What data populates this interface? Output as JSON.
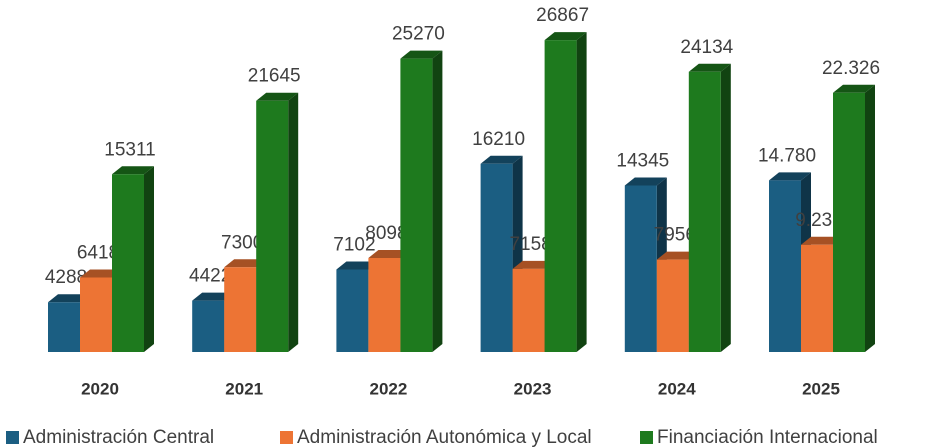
{
  "chart_data": {
    "type": "bar3d",
    "categories": [
      "2020",
      "2021",
      "2022",
      "2023",
      "2024",
      "2025"
    ],
    "series": [
      {
        "name": "Administración Central",
        "color": "#1b5e82",
        "values": [
          4288,
          4422,
          7102,
          16210,
          14345,
          14780
        ],
        "value_labels": [
          "4288",
          "4422",
          "7102",
          "16210",
          "14345",
          "14.780"
        ]
      },
      {
        "name": "Administración Autonómica y Local",
        "color": "#ed7434",
        "values": [
          6418,
          7300,
          8098,
          7158,
          7956,
          9236
        ],
        "value_labels": [
          "6418",
          "7300",
          "8098",
          "7158",
          "7956",
          "9.236"
        ]
      },
      {
        "name": "Financiación Internacional",
        "color": "#1e7a1e",
        "values": [
          15311,
          21645,
          25270,
          26867,
          24134,
          22326
        ],
        "value_labels": [
          "15311",
          "21645",
          "25270",
          "26867",
          "24134",
          "22.326"
        ]
      }
    ],
    "legend": "bottom"
  }
}
